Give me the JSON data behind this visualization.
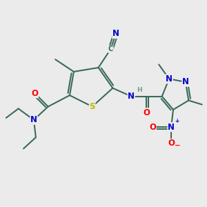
{
  "bg_color": "#ebebeb",
  "bond_color": "#3a6b5a",
  "bond_width": 1.5,
  "atom_colors": {
    "S": "#bbbb00",
    "O": "#ff0000",
    "N": "#0000cc",
    "H": "#7a9a8a",
    "C": "#3a6b5a"
  },
  "font_size": 7.5,
  "font_size_charge": 5.5
}
